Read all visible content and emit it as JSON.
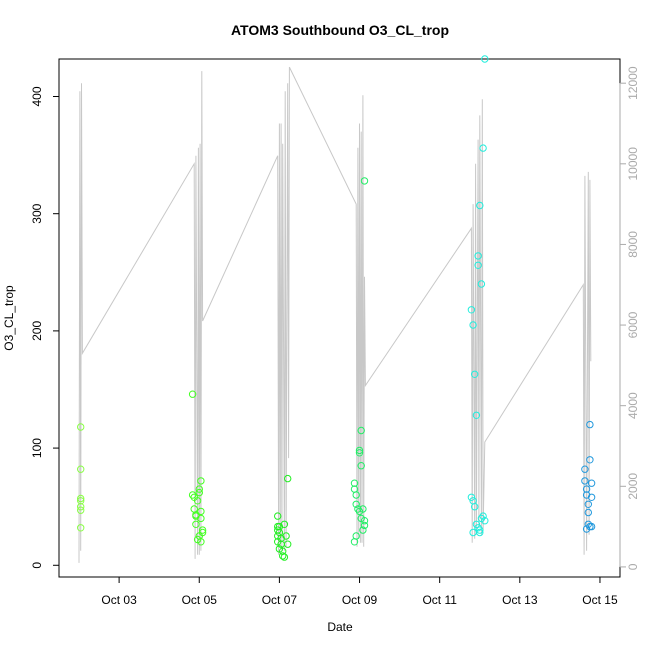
{
  "chart_data": {
    "type": "scatter",
    "title": "ATOM3 Southbound O3_CL_trop",
    "xlabel": "Date",
    "ylabel": "O3_CL_trop",
    "xlim": [
      "2017-10-01T12:00",
      "2017-10-15T12:00"
    ],
    "ylim": [
      -10,
      432
    ],
    "y_ticks": [
      0,
      100,
      200,
      300,
      400
    ],
    "x_ticks": [
      {
        "date": "2017-10-03",
        "label": "Oct 03"
      },
      {
        "date": "2017-10-05",
        "label": "Oct 05"
      },
      {
        "date": "2017-10-07",
        "label": "Oct 07"
      },
      {
        "date": "2017-10-09",
        "label": "Oct 09"
      },
      {
        "date": "2017-10-11",
        "label": "Oct 11"
      },
      {
        "date": "2017-10-13",
        "label": "Oct 13"
      },
      {
        "date": "2017-10-15",
        "label": "Oct 15"
      }
    ],
    "y2_ticks": [
      0,
      2000,
      4000,
      6000,
      8000,
      10000,
      12000
    ],
    "y2lim": [
      -250,
      12600
    ],
    "series": [
      {
        "marker": "open-circle",
        "points": [
          [
            "2017-10-02T01:00",
            118,
            "#88ff44"
          ],
          [
            "2017-10-02T01:00",
            82,
            "#88ff44"
          ],
          [
            "2017-10-02T01:00",
            57,
            "#88ff44"
          ],
          [
            "2017-10-02T01:00",
            55,
            "#88ff44"
          ],
          [
            "2017-10-02T01:00",
            50,
            "#88ff44"
          ],
          [
            "2017-10-02T01:00",
            47,
            "#88ff44"
          ],
          [
            "2017-10-02T01:00",
            32,
            "#88ff44"
          ],
          [
            "2017-10-04T20:00",
            146,
            "#44ff22"
          ],
          [
            "2017-10-04T20:00",
            60,
            "#44ff22"
          ],
          [
            "2017-10-04T21:00",
            58,
            "#44ff22"
          ],
          [
            "2017-10-04T21:00",
            48,
            "#44ff22"
          ],
          [
            "2017-10-04T22:00",
            43,
            "#44ff22"
          ],
          [
            "2017-10-04T22:00",
            42,
            "#44ff22"
          ],
          [
            "2017-10-04T23:00",
            55,
            "#44ff22"
          ],
          [
            "2017-10-05T00:00",
            62,
            "#44ff22"
          ],
          [
            "2017-10-05T00:00",
            65,
            "#44ff22"
          ],
          [
            "2017-10-05T01:00",
            72,
            "#44ff22"
          ],
          [
            "2017-10-05T01:00",
            46,
            "#44ff22"
          ],
          [
            "2017-10-05T01:00",
            40,
            "#44ff22"
          ],
          [
            "2017-10-05T02:00",
            30,
            "#44ff22"
          ],
          [
            "2017-10-05T02:00",
            28,
            "#44ff22"
          ],
          [
            "2017-10-05T00:00",
            25,
            "#44ff22"
          ],
          [
            "2017-10-04T23:00",
            22,
            "#44ff22"
          ],
          [
            "2017-10-04T22:00",
            35,
            "#44ff22"
          ],
          [
            "2017-10-05T01:00",
            20,
            "#44ff22"
          ],
          [
            "2017-10-06T23:00",
            42,
            "#22ee22"
          ],
          [
            "2017-10-06T23:00",
            33,
            "#22ee22"
          ],
          [
            "2017-10-06T23:00",
            30,
            "#22ee22"
          ],
          [
            "2017-10-06T23:00",
            25,
            "#22ee22"
          ],
          [
            "2017-10-06T23:00",
            20,
            "#22ee22"
          ],
          [
            "2017-10-07T00:00",
            33,
            "#22ee22"
          ],
          [
            "2017-10-07T00:00",
            28,
            "#22ee22"
          ],
          [
            "2017-10-07T01:00",
            23,
            "#22ee22"
          ],
          [
            "2017-10-07T01:00",
            18,
            "#22ee22"
          ],
          [
            "2017-10-07T02:00",
            12,
            "#22ee22"
          ],
          [
            "2017-10-07T02:00",
            8,
            "#22ee22"
          ],
          [
            "2017-10-07T03:00",
            7,
            "#22ee22"
          ],
          [
            "2017-10-07T03:00",
            35,
            "#22ee22"
          ],
          [
            "2017-10-07T04:00",
            25,
            "#22ee22"
          ],
          [
            "2017-10-07T05:00",
            74,
            "#22ee22"
          ],
          [
            "2017-10-07T05:00",
            18,
            "#22ee22"
          ],
          [
            "2017-10-07T00:00",
            14,
            "#22ee22"
          ],
          [
            "2017-10-08T21:00",
            70,
            "#22ee66"
          ],
          [
            "2017-10-08T21:00",
            65,
            "#22ee66"
          ],
          [
            "2017-10-08T22:00",
            60,
            "#22ee66"
          ],
          [
            "2017-10-08T22:00",
            52,
            "#22ee66"
          ],
          [
            "2017-10-08T23:00",
            48,
            "#22ee66"
          ],
          [
            "2017-10-08T22:00",
            25,
            "#22ee66"
          ],
          [
            "2017-10-08T21:00",
            20,
            "#22ee66"
          ],
          [
            "2017-10-09T00:00",
            98,
            "#22ee66"
          ],
          [
            "2017-10-09T00:00",
            96,
            "#22ee66"
          ],
          [
            "2017-10-09T01:00",
            115,
            "#22ee66"
          ],
          [
            "2017-10-09T01:00",
            85,
            "#22ee66"
          ],
          [
            "2017-10-09T02:00",
            48,
            "#22ee66"
          ],
          [
            "2017-10-09T03:00",
            328,
            "#22ee66"
          ],
          [
            "2017-10-09T03:00",
            38,
            "#22ee66"
          ],
          [
            "2017-10-09T03:00",
            34,
            "#22ee66"
          ],
          [
            "2017-10-09T02:00",
            30,
            "#22ee66"
          ],
          [
            "2017-10-09T00:00",
            46,
            "#22ee66"
          ],
          [
            "2017-10-09T01:00",
            40,
            "#22ee66"
          ],
          [
            "2017-10-11T19:00",
            218,
            "#22eedd"
          ],
          [
            "2017-10-11T20:00",
            205,
            "#22eedd"
          ],
          [
            "2017-10-11T21:00",
            163,
            "#22eedd"
          ],
          [
            "2017-10-11T22:00",
            128,
            "#22eedd"
          ],
          [
            "2017-10-11T23:00",
            264,
            "#22eedd"
          ],
          [
            "2017-10-11T23:00",
            256,
            "#22eedd"
          ],
          [
            "2017-10-12T00:00",
            307,
            "#22eedd"
          ],
          [
            "2017-10-12T01:00",
            240,
            "#22eedd"
          ],
          [
            "2017-10-12T02:00",
            356,
            "#22eedd"
          ],
          [
            "2017-10-12T03:00",
            432,
            "#22eedd"
          ],
          [
            "2017-10-11T19:00",
            58,
            "#22eedd"
          ],
          [
            "2017-10-11T20:00",
            55,
            "#22eedd"
          ],
          [
            "2017-10-11T21:00",
            50,
            "#22eedd"
          ],
          [
            "2017-10-11T22:00",
            35,
            "#22eedd"
          ],
          [
            "2017-10-11T23:00",
            32,
            "#22eedd"
          ],
          [
            "2017-10-12T00:00",
            30,
            "#22eedd"
          ],
          [
            "2017-10-12T00:00",
            28,
            "#22eedd"
          ],
          [
            "2017-10-11T20:00",
            28,
            "#22eedd"
          ],
          [
            "2017-10-12T01:00",
            40,
            "#22eedd"
          ],
          [
            "2017-10-12T02:00",
            42,
            "#22eedd"
          ],
          [
            "2017-10-12T03:00",
            38,
            "#22eedd"
          ],
          [
            "2017-10-14T15:00",
            82,
            "#2299dd"
          ],
          [
            "2017-10-14T15:00",
            72,
            "#2299dd"
          ],
          [
            "2017-10-14T16:00",
            65,
            "#2299dd"
          ],
          [
            "2017-10-14T16:00",
            60,
            "#2299dd"
          ],
          [
            "2017-10-14T17:00",
            52,
            "#2299dd"
          ],
          [
            "2017-10-14T17:00",
            45,
            "#2299dd"
          ],
          [
            "2017-10-14T18:00",
            120,
            "#2299dd"
          ],
          [
            "2017-10-14T18:00",
            90,
            "#2299dd"
          ],
          [
            "2017-10-14T19:00",
            70,
            "#2299dd"
          ],
          [
            "2017-10-14T19:00",
            58,
            "#2299dd"
          ],
          [
            "2017-10-14T17:00",
            35,
            "#2299dd"
          ],
          [
            "2017-10-14T18:00",
            33,
            "#2299dd"
          ],
          [
            "2017-10-14T19:00",
            33,
            "#2299dd"
          ],
          [
            "2017-10-14T16:00",
            31,
            "#2299dd"
          ]
        ]
      },
      {
        "axis": "right",
        "color": "#c8c8c8",
        "points": [
          [
            "2017-10-02T00:00",
            100
          ],
          [
            "2017-10-02T00:30",
            11800
          ],
          [
            "2017-10-02T01:00",
            400
          ],
          [
            "2017-10-02T01:30",
            12000
          ],
          [
            "2017-10-02T02:00",
            5300
          ],
          [
            "2017-10-04T21:00",
            10000
          ],
          [
            "2017-10-04T21:30",
            200
          ],
          [
            "2017-10-04T22:00",
            10200
          ],
          [
            "2017-10-04T23:00",
            300
          ],
          [
            "2017-10-04T23:30",
            10400
          ],
          [
            "2017-10-05T00:00",
            300
          ],
          [
            "2017-10-05T00:30",
            10500
          ],
          [
            "2017-10-05T01:00",
            400
          ],
          [
            "2017-10-05T01:30",
            12300
          ],
          [
            "2017-10-05T02:00",
            6100
          ],
          [
            "2017-10-06T23:00",
            10200
          ],
          [
            "2017-10-06T23:30",
            300
          ],
          [
            "2017-10-07T00:00",
            11000
          ],
          [
            "2017-10-07T00:30",
            500
          ],
          [
            "2017-10-07T01:00",
            11000
          ],
          [
            "2017-10-07T01:30",
            400
          ],
          [
            "2017-10-07T02:00",
            10500
          ],
          [
            "2017-10-07T03:00",
            400
          ],
          [
            "2017-10-07T03:30",
            11800
          ],
          [
            "2017-10-07T04:00",
            500
          ],
          [
            "2017-10-07T05:00",
            12000
          ],
          [
            "2017-10-07T05:30",
            2700
          ],
          [
            "2017-10-07T06:00",
            12400
          ],
          [
            "2017-10-08T22:00",
            9000
          ],
          [
            "2017-10-08T22:30",
            500
          ],
          [
            "2017-10-08T23:00",
            10400
          ],
          [
            "2017-10-08T23:30",
            700
          ],
          [
            "2017-10-09T00:00",
            11000
          ],
          [
            "2017-10-09T00:30",
            600
          ],
          [
            "2017-10-09T01:00",
            10800
          ],
          [
            "2017-10-09T01:30",
            600
          ],
          [
            "2017-10-09T02:00",
            11700
          ],
          [
            "2017-10-09T02:30",
            500
          ],
          [
            "2017-10-09T03:00",
            7200
          ],
          [
            "2017-10-09T03:30",
            4500
          ],
          [
            "2017-10-11T19:00",
            8400
          ],
          [
            "2017-10-11T19:30",
            600
          ],
          [
            "2017-10-11T20:00",
            9000
          ],
          [
            "2017-10-11T21:00",
            700
          ],
          [
            "2017-10-11T21:30",
            10000
          ],
          [
            "2017-10-11T22:00",
            800
          ],
          [
            "2017-10-11T23:00",
            10600
          ],
          [
            "2017-10-11T23:30",
            1000
          ],
          [
            "2017-10-12T00:00",
            11200
          ],
          [
            "2017-10-12T01:00",
            800
          ],
          [
            "2017-10-12T01:30",
            11600
          ],
          [
            "2017-10-12T02:00",
            900
          ],
          [
            "2017-10-12T03:00",
            3100
          ],
          [
            "2017-10-14T14:00",
            7000
          ],
          [
            "2017-10-14T14:30",
            300
          ],
          [
            "2017-10-14T15:00",
            9700
          ],
          [
            "2017-10-14T16:00",
            400
          ],
          [
            "2017-10-14T17:00",
            9800
          ],
          [
            "2017-10-14T17:30",
            800
          ],
          [
            "2017-10-14T18:00",
            9600
          ],
          [
            "2017-10-14T18:30",
            5100
          ]
        ]
      }
    ]
  }
}
